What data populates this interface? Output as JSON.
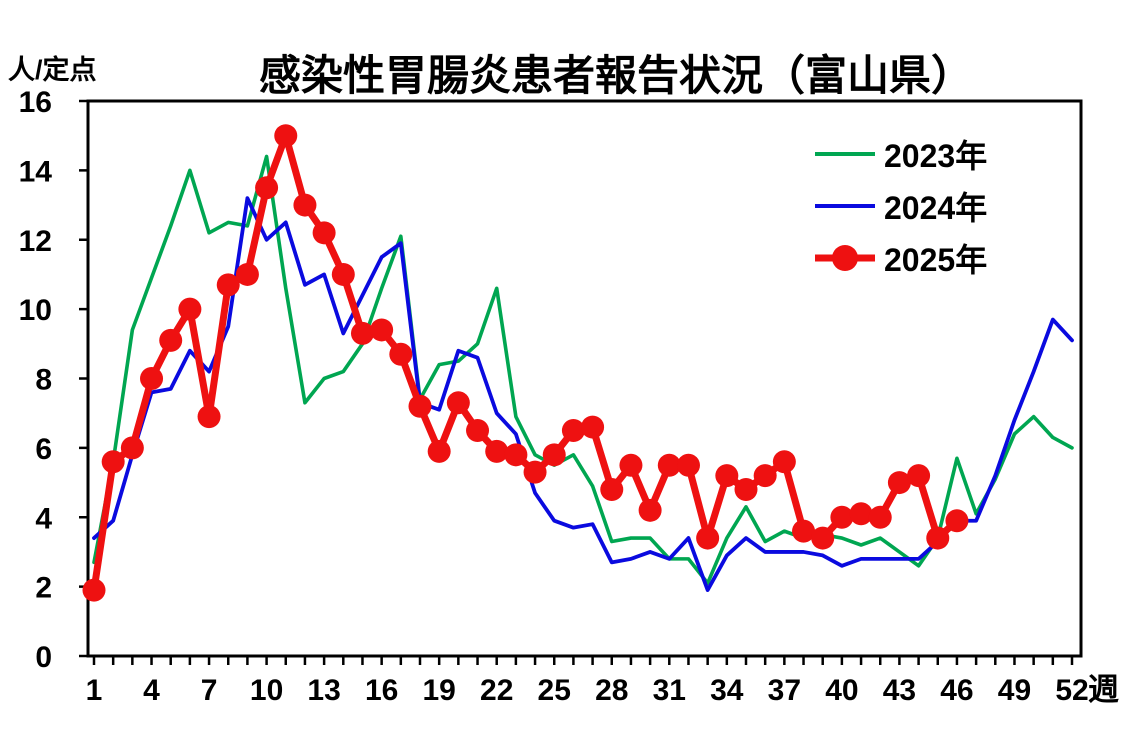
{
  "title": "感染性胃腸炎患者報告状況（富山県）",
  "y_axis_unit": "人/定点",
  "x_axis_unit": "週",
  "chart_data": {
    "type": "line",
    "title": "感染性胃腸炎患者報告状況（富山県）",
    "xlabel": "週",
    "ylabel": "人/定点",
    "ylim": [
      0,
      16
    ],
    "y_ticks": [
      0,
      2,
      4,
      6,
      8,
      10,
      12,
      14,
      16
    ],
    "x": [
      1,
      2,
      3,
      4,
      5,
      6,
      7,
      8,
      9,
      10,
      11,
      12,
      13,
      14,
      15,
      16,
      17,
      18,
      19,
      20,
      21,
      22,
      23,
      24,
      25,
      26,
      27,
      28,
      29,
      30,
      31,
      32,
      33,
      34,
      35,
      36,
      37,
      38,
      39,
      40,
      41,
      42,
      43,
      44,
      45,
      46,
      47,
      48,
      49,
      50,
      51,
      52
    ],
    "x_tick_labels": [
      1,
      4,
      7,
      10,
      13,
      16,
      19,
      22,
      25,
      28,
      31,
      34,
      37,
      40,
      43,
      46,
      49,
      52
    ],
    "grid": false,
    "legend_position": "upper right",
    "series": [
      {
        "name": "2023年",
        "color": "#00A651",
        "marker": false,
        "width": 3.6,
        "values": [
          2.7,
          5.6,
          9.4,
          10.9,
          12.4,
          14.0,
          12.2,
          12.5,
          12.4,
          14.4,
          10.6,
          7.3,
          8.0,
          8.2,
          9.0,
          10.6,
          12.1,
          7.4,
          8.4,
          8.5,
          9.0,
          10.6,
          6.9,
          5.8,
          5.5,
          5.8,
          4.9,
          3.3,
          3.4,
          3.4,
          2.8,
          2.8,
          2.1,
          3.4,
          4.3,
          3.3,
          3.6,
          3.4,
          3.5,
          3.4,
          3.2,
          3.4,
          3.0,
          2.6,
          3.4,
          5.7,
          4.1,
          5.1,
          6.4,
          6.9,
          6.3,
          6.0
        ]
      },
      {
        "name": "2024年",
        "color": "#0A0ADF",
        "marker": false,
        "width": 3.8,
        "values": [
          3.4,
          3.9,
          5.8,
          7.6,
          7.7,
          8.8,
          8.2,
          9.5,
          13.2,
          12.0,
          12.5,
          10.7,
          11.0,
          9.3,
          10.4,
          11.5,
          11.9,
          7.3,
          7.1,
          8.8,
          8.6,
          7.0,
          6.4,
          4.7,
          3.9,
          3.7,
          3.8,
          2.7,
          2.8,
          3.0,
          2.8,
          3.4,
          1.9,
          2.9,
          3.4,
          3.0,
          3.0,
          3.0,
          2.9,
          2.6,
          2.8,
          2.8,
          2.8,
          2.8,
          3.3,
          3.9,
          3.9,
          5.2,
          6.8,
          8.2,
          9.7,
          9.1
        ]
      },
      {
        "name": "2025年",
        "color": "#EE1111",
        "marker": true,
        "width": 7,
        "values": [
          1.9,
          5.6,
          6.0,
          8.0,
          9.1,
          10.0,
          6.9,
          10.7,
          11.0,
          13.5,
          15.0,
          13.0,
          12.2,
          11.0,
          9.3,
          9.4,
          8.7,
          7.2,
          5.9,
          7.3,
          6.5,
          5.9,
          5.8,
          5.3,
          5.8,
          6.5,
          6.6,
          4.8,
          5.5,
          4.2,
          5.5,
          5.5,
          3.4,
          5.2,
          4.8,
          5.2,
          5.6,
          3.6,
          3.4,
          4.0,
          4.1,
          4.0,
          5.0,
          5.2,
          3.4,
          3.9,
          null,
          null,
          null,
          null,
          null,
          null
        ]
      }
    ]
  }
}
